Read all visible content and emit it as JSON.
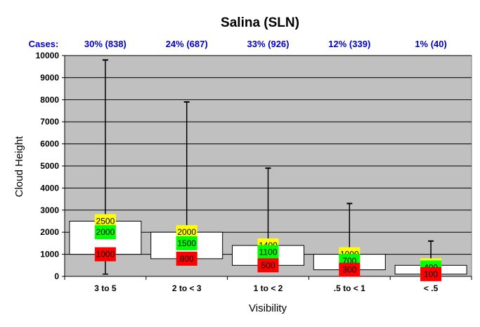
{
  "chart_data": {
    "type": "box",
    "title": "Salina (SLN)",
    "xlabel": "Visibility",
    "ylabel": "Cloud Height",
    "ylim": [
      0,
      10000
    ],
    "yticks": [
      0,
      1000,
      2000,
      3000,
      4000,
      5000,
      6000,
      7000,
      8000,
      9000,
      10000
    ],
    "grid": true,
    "cases_label": "Cases:",
    "categories": [
      "3 to 5",
      "2 to < 3",
      "1 to < 2",
      ".5 to < 1",
      "< .5"
    ],
    "cases": [
      "30% (838)",
      "24% (687)",
      "33% (926)",
      "12% (339)",
      "1% (40)"
    ],
    "boxes": [
      {
        "min": 100,
        "q1": 1000,
        "median": 2000,
        "q3": 2500,
        "max": 9800,
        "label_q3": "2500",
        "label_median": "2000",
        "label_q1": "1000"
      },
      {
        "min": 800,
        "q1": 800,
        "median": 1500,
        "q3": 2000,
        "max": 7900,
        "label_q3": "2000",
        "label_median": "1500",
        "label_q1": "800"
      },
      {
        "min": 500,
        "q1": 500,
        "median": 1100,
        "q3": 1400,
        "max": 4900,
        "label_q3": "1400",
        "label_median": "1100",
        "label_q1": "500"
      },
      {
        "min": 300,
        "q1": 300,
        "median": 700,
        "q3": 1000,
        "max": 3300,
        "label_q3": "1000",
        "label_median": "700",
        "label_q1": "300"
      },
      {
        "min": 100,
        "q1": 100,
        "median": 400,
        "q3": 500,
        "max": 1600,
        "label_q3": "500",
        "label_median": "400",
        "label_q1": "100"
      }
    ],
    "colors": {
      "plot_background": "#c0c0c0",
      "box_fill": "#ffffff",
      "q3_label": "#ffff00",
      "median_label": "#00ff00",
      "q1_label": "#ff0000",
      "cases_text": "#0000cc"
    }
  }
}
